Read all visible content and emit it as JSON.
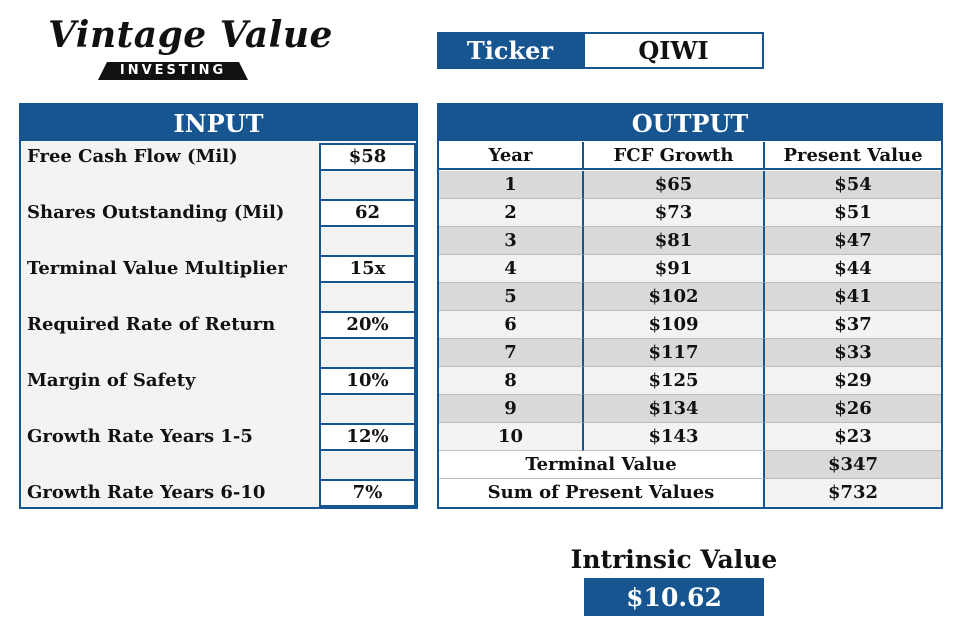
{
  "logo": {
    "script_text": "Vintage Value",
    "bar_text": "INVESTING"
  },
  "ticker": {
    "label": "Ticker",
    "value": "QIWI"
  },
  "input": {
    "header": "INPUT",
    "rows": [
      {
        "label": "Free Cash Flow (Mil)",
        "value": "$58"
      },
      {
        "label": "Shares Outstanding (Mil)",
        "value": "62"
      },
      {
        "label": "Terminal Value Multiplier",
        "value": "15x"
      },
      {
        "label": "Required Rate of Return",
        "value": "20%"
      },
      {
        "label": "Margin of Safety",
        "value": "10%"
      },
      {
        "label": "Growth Rate Years 1-5",
        "value": "12%"
      },
      {
        "label": "Growth Rate Years 6-10",
        "value": "7%"
      }
    ]
  },
  "output": {
    "header": "OUTPUT",
    "columns": [
      "Year",
      "FCF Growth",
      "Present Value"
    ],
    "rows": [
      {
        "year": "1",
        "fcf": "$65",
        "pv": "$54"
      },
      {
        "year": "2",
        "fcf": "$73",
        "pv": "$51"
      },
      {
        "year": "3",
        "fcf": "$81",
        "pv": "$47"
      },
      {
        "year": "4",
        "fcf": "$91",
        "pv": "$44"
      },
      {
        "year": "5",
        "fcf": "$102",
        "pv": "$41"
      },
      {
        "year": "6",
        "fcf": "$109",
        "pv": "$37"
      },
      {
        "year": "7",
        "fcf": "$117",
        "pv": "$33"
      },
      {
        "year": "8",
        "fcf": "$125",
        "pv": "$29"
      },
      {
        "year": "9",
        "fcf": "$134",
        "pv": "$26"
      },
      {
        "year": "10",
        "fcf": "$143",
        "pv": "$23"
      }
    ],
    "terminal_value": {
      "label": "Terminal Value",
      "value": "$347"
    },
    "sum_pv": {
      "label": "Sum of Present Values",
      "value": "$732"
    }
  },
  "intrinsic": {
    "label": "Intrinsic Value",
    "value": "$10.62"
  },
  "colors": {
    "accent": "#175591",
    "shade": "#d9d9d9",
    "light": "#f3f3f3"
  }
}
